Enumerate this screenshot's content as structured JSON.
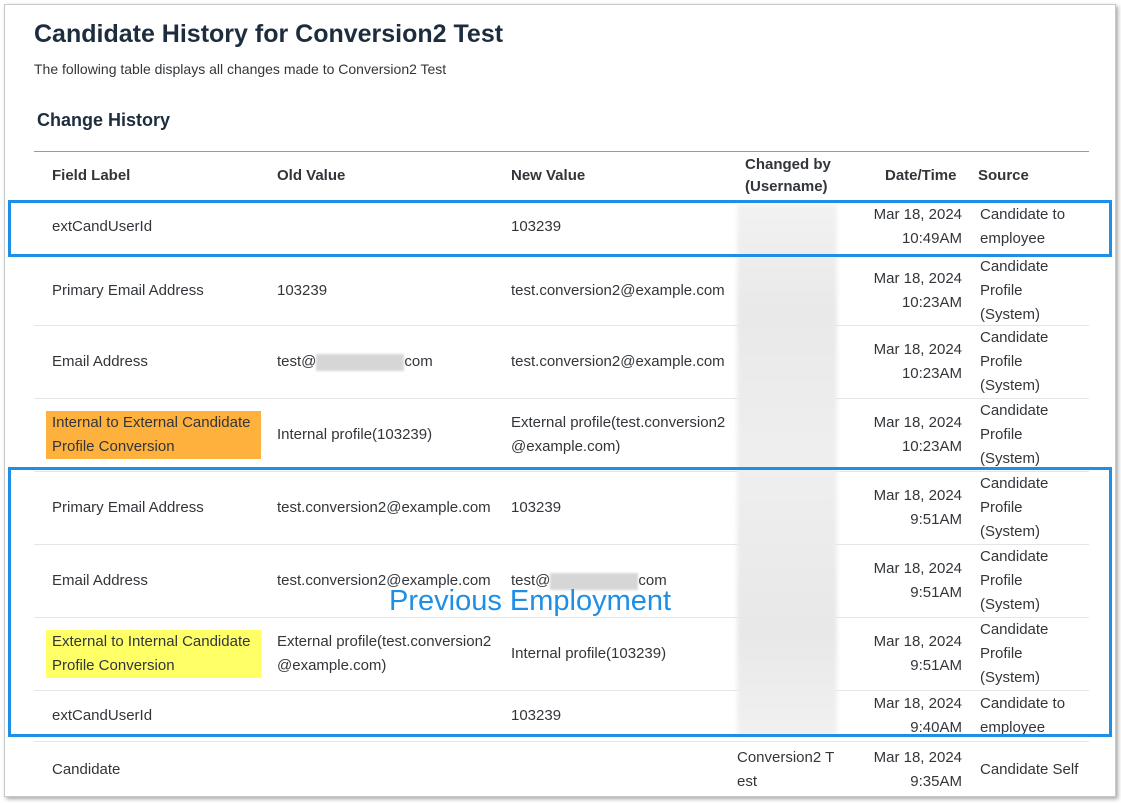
{
  "page": {
    "title": "Candidate History for Conversion2 Test",
    "subtitle": "The following table displays all changes made to Conversion2 Test",
    "section_title": "Change History"
  },
  "table": {
    "headers": {
      "field": "Field Label",
      "old": "Old Value",
      "new": "New Value",
      "changed_by_1": "Changed by",
      "changed_by_2": "(Username)",
      "date": "Date/Time",
      "source": "Source"
    },
    "rows": [
      {
        "field": "extCandUserId",
        "old": "",
        "new": "103239",
        "changed_by": "",
        "date1": "Mar 18, 2024",
        "date2": "10:49AM",
        "source": "Candidate to employee"
      },
      {
        "field": "Primary Email Address",
        "old": "103239",
        "new": "test.conversion2@example.com",
        "changed_by": "",
        "date1": "Mar 18, 2024",
        "date2": "10:23AM",
        "source": "Candidate Profile (System)"
      },
      {
        "field": "Email Address",
        "old_prefix": "test@",
        "old_suffix": "com",
        "new": "test.conversion2@example.com",
        "changed_by": "",
        "date1": "Mar 18, 2024",
        "date2": "10:23AM",
        "source": "Candidate Profile (System)"
      },
      {
        "field": "Internal to External Candidate Profile Conversion",
        "old": "Internal profile(103239)",
        "new": "External profile(test.conversion2@example.com)",
        "changed_by": "",
        "date1": "Mar 18, 2024",
        "date2": "10:23AM",
        "source": "Candidate Profile (System)",
        "highlight": "#ffb13d"
      },
      {
        "field": "Primary Email Address",
        "old": "test.conversion2@example.com",
        "new": "103239",
        "changed_by": "",
        "date1": "Mar 18, 2024",
        "date2": "9:51AM",
        "source": "Candidate Profile (System)"
      },
      {
        "field": "Email Address",
        "old": "test.conversion2@example.com",
        "new_prefix": "test@",
        "new_suffix": "com",
        "changed_by": "",
        "date1": "Mar 18, 2024",
        "date2": "9:51AM",
        "source": "Candidate Profile (System)"
      },
      {
        "field": "External to Internal Candidate Profile Conversion",
        "old": "External profile(test.conversion2@example.com)",
        "new": "Internal profile(103239)",
        "changed_by": "",
        "date1": "Mar 18, 2024",
        "date2": "9:51AM",
        "source": "Candidate Profile (System)",
        "highlight": "#ffff66"
      },
      {
        "field": "extCandUserId",
        "old": "",
        "new": "103239",
        "changed_by": "",
        "date1": "Mar 18, 2024",
        "date2": "9:40AM",
        "source": "Candidate to employee"
      },
      {
        "field": "Candidate",
        "old": "",
        "new": "",
        "changed_by": "Conversion2 Test",
        "date1": "Mar 18, 2024",
        "date2": "9:35AM",
        "source": "Candidate Self"
      }
    ]
  },
  "annotation": {
    "label": "Previous Employment",
    "color": "#1f8fe6"
  }
}
